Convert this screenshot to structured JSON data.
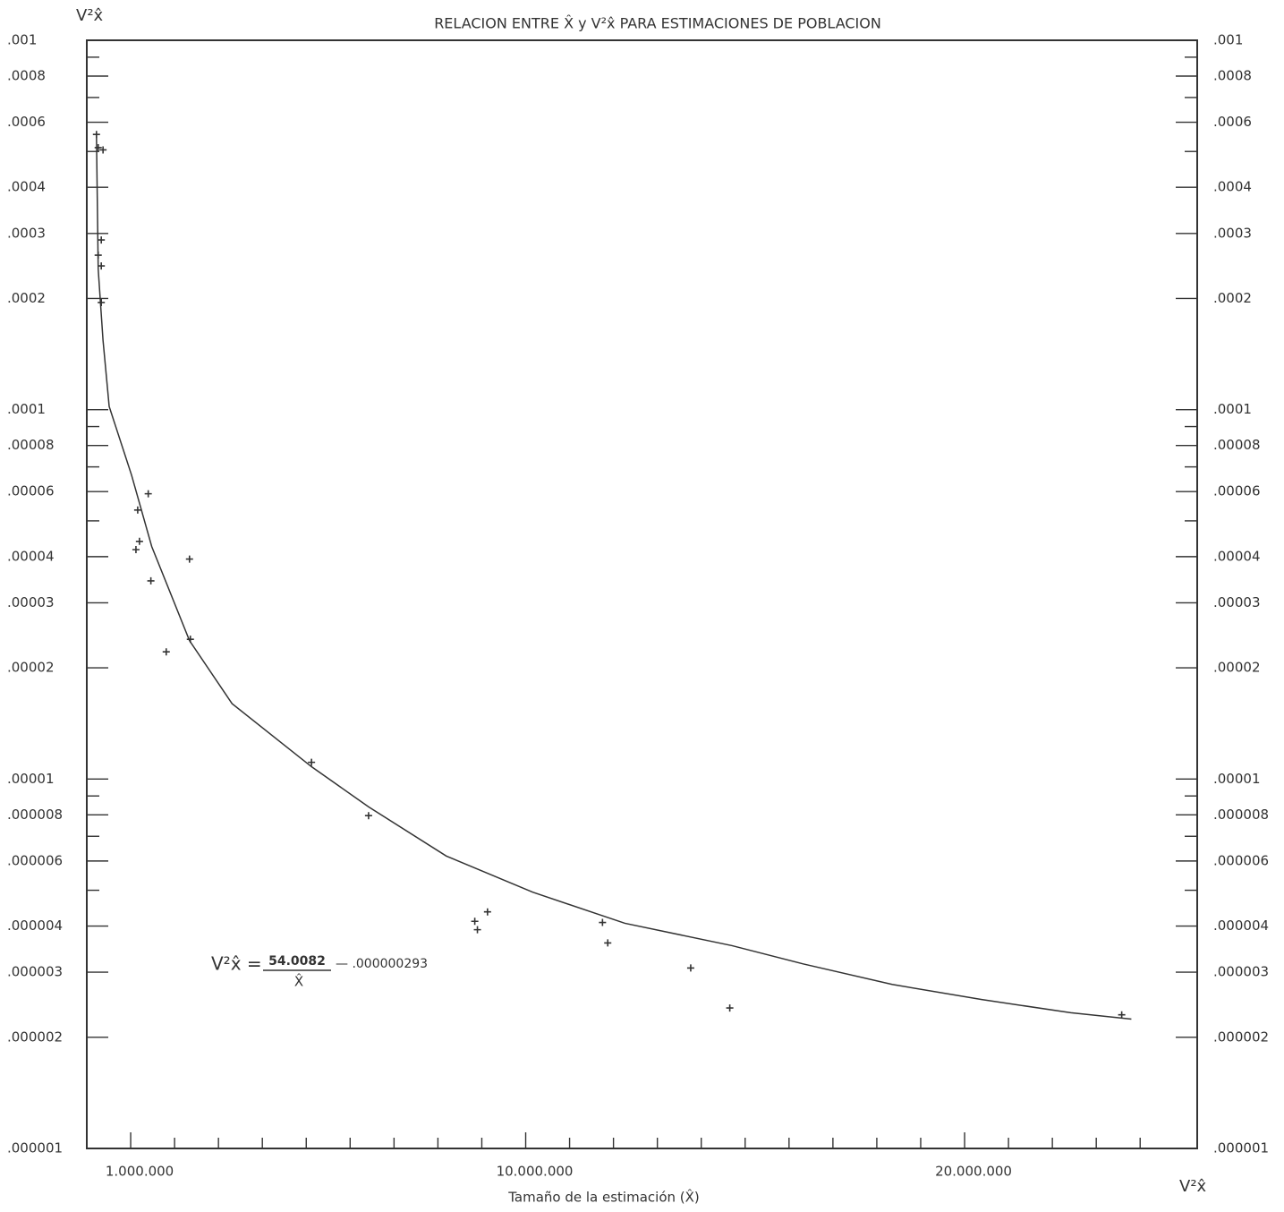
{
  "chart_data": {
    "type": "scatter",
    "title": "RELACION ENTRE X̂ y V²x̂ PARA ESTIMACIONES DE POBLACION",
    "x_label": "Tamaño de la estimación (X̂)",
    "y_label": "V²x̂",
    "x_corner_label": "V²x̂",
    "log_y": true,
    "xlim": [
      0,
      25300000
    ],
    "ylim": [
      1e-06,
      0.001
    ],
    "xticks": [
      {
        "value": 1000000,
        "label": "1.000.000"
      },
      {
        "value": 10000000,
        "label": "10.000.000"
      },
      {
        "value": 20000000,
        "label": "20.000.000"
      }
    ],
    "xminorticks": [
      2000000,
      3000000,
      4000000,
      5000000,
      6000000,
      7000000,
      8000000,
      9000000,
      11000000,
      12000000,
      13000000,
      14000000,
      15000000,
      16000000,
      17000000,
      18000000,
      19000000,
      21000000,
      22000000,
      23000000,
      24000000
    ],
    "yticks": [
      {
        "value": 0.001,
        "label": ".001"
      },
      {
        "value": 0.0008,
        "label": ".0008"
      },
      {
        "value": 0.0006,
        "label": ".0006"
      },
      {
        "value": 0.0004,
        "label": ".0004"
      },
      {
        "value": 0.0003,
        "label": ".0003"
      },
      {
        "value": 0.0002,
        "label": ".0002"
      },
      {
        "value": 0.0001,
        "label": ".0001"
      },
      {
        "value": 8e-05,
        "label": ".00008"
      },
      {
        "value": 6e-05,
        "label": ".00006"
      },
      {
        "value": 4e-05,
        "label": ".00004"
      },
      {
        "value": 3e-05,
        "label": ".00003"
      },
      {
        "value": 2e-05,
        "label": ".00002"
      },
      {
        "value": 1e-05,
        "label": ".00001"
      },
      {
        "value": 8e-06,
        "label": ".000008"
      },
      {
        "value": 6e-06,
        "label": ".000006"
      },
      {
        "value": 4e-06,
        "label": ".000004"
      },
      {
        "value": 3e-06,
        "label": ".000003"
      },
      {
        "value": 2e-06,
        "label": ".000002"
      },
      {
        "value": 1e-06,
        "label": ".000001"
      }
    ],
    "yminorticks": [
      0.0009,
      0.0007,
      0.0005,
      9e-05,
      7e-05,
      5e-05,
      9e-06,
      7e-06,
      5e-06
    ],
    "series": [
      {
        "type": "scatter",
        "color": "#333333",
        "x": [
          220000,
          260000,
          370000,
          330000,
          260000,
          330000,
          330000,
          1160000,
          1400000,
          1120000,
          1200000,
          1460000,
          2340000,
          2360000,
          1810000,
          5120000,
          6420000,
          8840000,
          8900000,
          9130000,
          11750000,
          11870000,
          13760000,
          14650000,
          23580000
        ],
        "values": [
          0.000556,
          0.000512,
          0.000505,
          0.000288,
          0.000262,
          0.000245,
          0.000195,
          5.35e-05,
          5.92e-05,
          4.18e-05,
          4.4e-05,
          3.44e-05,
          3.94e-05,
          2.39e-05,
          2.21e-05,
          1.11e-05,
          7.96e-06,
          4.12e-06,
          3.91e-06,
          4.37e-06,
          4.09e-06,
          3.6e-06,
          3.08e-06,
          2.4e-06,
          2.3e-06
        ]
      },
      {
        "type": "line",
        "color": "#333333",
        "x": [
          220000,
          260000,
          370000,
          510000,
          1020000,
          1480000,
          2340000,
          3310000,
          5120000,
          6420000,
          8190000,
          10160000,
          12260000,
          14700000,
          16320000,
          18350000,
          20390000,
          22420000,
          23800000
        ],
        "values": [
          0.000556,
          0.00024,
          0.000154,
          0.000102,
          6.65e-05,
          4.26e-05,
          2.37e-05,
          1.6e-05,
          1.08e-05,
          8.41e-06,
          6.19e-06,
          4.94e-06,
          4.07e-06,
          3.54e-06,
          3.16e-06,
          2.78e-06,
          2.53e-06,
          2.33e-06,
          2.24e-06
        ]
      }
    ],
    "annotation": {
      "lhs": "V²x̂ =",
      "numerator": "54.0082",
      "denominator": "X̂",
      "tail": "— .000000293"
    }
  }
}
